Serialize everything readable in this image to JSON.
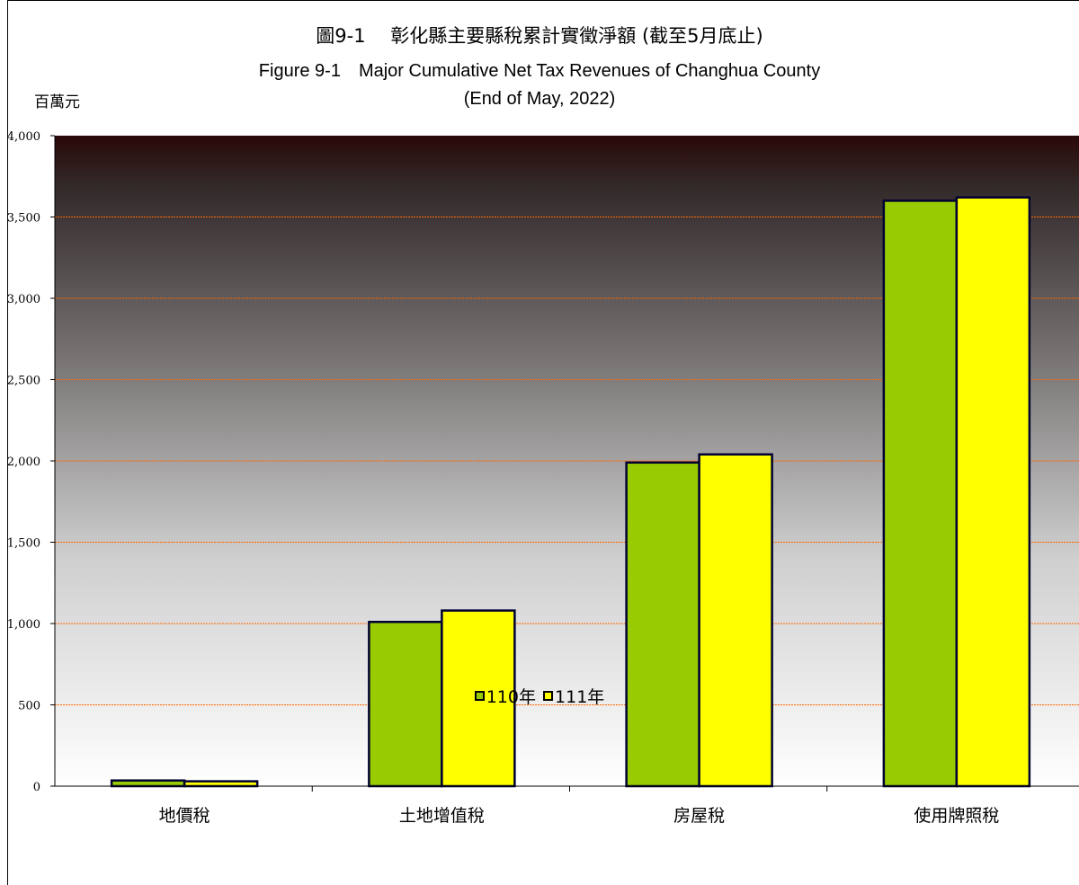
{
  "chart_data": {
    "type": "bar",
    "title_zh": "圖9-1　 彰化縣主要縣稅累計實徵淨額 (截至5月底止)",
    "title_en": "Figure 9-1　Major Cumulative Net Tax Revenues of Changhua County",
    "subtitle": "(End of May, 2022)",
    "ylabel": "百萬元",
    "ylim": [
      0,
      4000
    ],
    "yticks": [
      "0",
      "500",
      "1,000",
      "1,500",
      "2,000",
      "2,500",
      "3,000",
      "3,500",
      "4,000"
    ],
    "ytick_values": [
      0,
      500,
      1000,
      1500,
      2000,
      2500,
      3000,
      3500,
      4000
    ],
    "categories": [
      "地價稅",
      "土地增值稅",
      "房屋稅",
      "使用牌照稅"
    ],
    "series": [
      {
        "name": "110年",
        "values": [
          35,
          1010,
          1990,
          3600
        ],
        "color": "#99cc00"
      },
      {
        "name": "111年",
        "values": [
          30,
          1080,
          2040,
          3620
        ],
        "color": "#ffff00"
      }
    ],
    "grid": true,
    "legend_position": "bottom"
  }
}
